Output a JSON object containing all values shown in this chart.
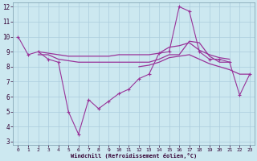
{
  "xlabel": "Windchill (Refroidissement éolien,°C)",
  "background_color": "#cce8f0",
  "grid_color": "#aaccdd",
  "line_color": "#993399",
  "xlim": [
    -0.5,
    23.5
  ],
  "ylim": [
    2.8,
    12.3
  ],
  "yticks": [
    3,
    4,
    5,
    6,
    7,
    8,
    9,
    10,
    11,
    12
  ],
  "xticks": [
    0,
    1,
    2,
    3,
    4,
    5,
    6,
    7,
    8,
    9,
    10,
    11,
    12,
    13,
    14,
    15,
    16,
    17,
    18,
    19,
    20,
    21,
    22,
    23
  ],
  "series": [
    {
      "x": [
        0,
        1,
        2,
        3,
        4,
        5,
        6,
        7,
        8,
        9,
        10,
        11,
        12,
        13,
        14,
        15,
        16,
        17,
        18,
        19,
        20,
        21,
        22,
        23
      ],
      "y": [
        10.0,
        8.8,
        9.0,
        8.5,
        8.3,
        5.0,
        3.5,
        5.8,
        5.2,
        5.7,
        6.2,
        6.5,
        7.2,
        7.5,
        8.9,
        9.0,
        12.0,
        11.7,
        9.0,
        8.5,
        8.5,
        8.3,
        6.1,
        7.5
      ],
      "marker": true
    },
    {
      "x": [
        2,
        3,
        4,
        5,
        6,
        7,
        8,
        9,
        10,
        11,
        12,
        13,
        14,
        15,
        16,
        17,
        18,
        19,
        20,
        21
      ],
      "y": [
        9.0,
        8.9,
        8.8,
        8.7,
        8.7,
        8.7,
        8.7,
        8.7,
        8.8,
        8.8,
        8.8,
        8.8,
        8.9,
        9.3,
        9.4,
        9.6,
        9.1,
        8.8,
        8.6,
        8.5
      ],
      "marker": false
    },
    {
      "x": [
        2,
        3,
        4,
        5,
        6,
        7,
        8,
        9,
        10,
        11,
        12,
        13,
        14,
        15,
        16,
        17,
        18,
        19,
        20,
        21
      ],
      "y": [
        8.8,
        8.8,
        8.5,
        8.4,
        8.3,
        8.3,
        8.3,
        8.3,
        8.3,
        8.3,
        8.3,
        8.3,
        8.5,
        8.8,
        8.8,
        9.7,
        9.6,
        8.7,
        8.3,
        8.3
      ],
      "marker": false
    },
    {
      "x": [
        12,
        13,
        14,
        15,
        16,
        17,
        18,
        19,
        20,
        21,
        22,
        23
      ],
      "y": [
        8.0,
        8.1,
        8.3,
        8.6,
        8.7,
        8.8,
        8.5,
        8.2,
        8.0,
        7.8,
        7.5,
        7.5
      ],
      "marker": false
    }
  ]
}
